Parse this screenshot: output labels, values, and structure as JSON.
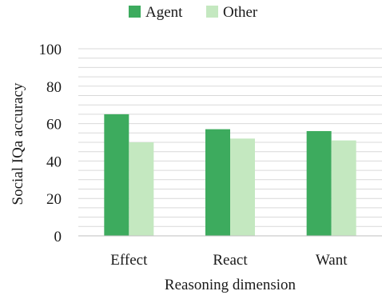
{
  "chart_data": {
    "type": "bar",
    "categories": [
      "Effect",
      "React",
      "Want"
    ],
    "series": [
      {
        "name": "Agent",
        "color": "#3dab5e",
        "values": [
          65,
          57,
          56
        ]
      },
      {
        "name": "Other",
        "color": "#c4e8c0",
        "values": [
          50,
          52,
          51
        ]
      }
    ],
    "xlabel": "Reasoning dimension",
    "ylabel": "Social IQa accuracy",
    "ylim": [
      0,
      100
    ],
    "yticks": [
      0,
      20,
      40,
      60,
      80,
      100
    ],
    "ytick_labels": [
      "0",
      "20",
      "40",
      "60",
      "80",
      "100"
    ],
    "minor_grid_step": 5,
    "grid": true,
    "legend_position": "top-center"
  }
}
